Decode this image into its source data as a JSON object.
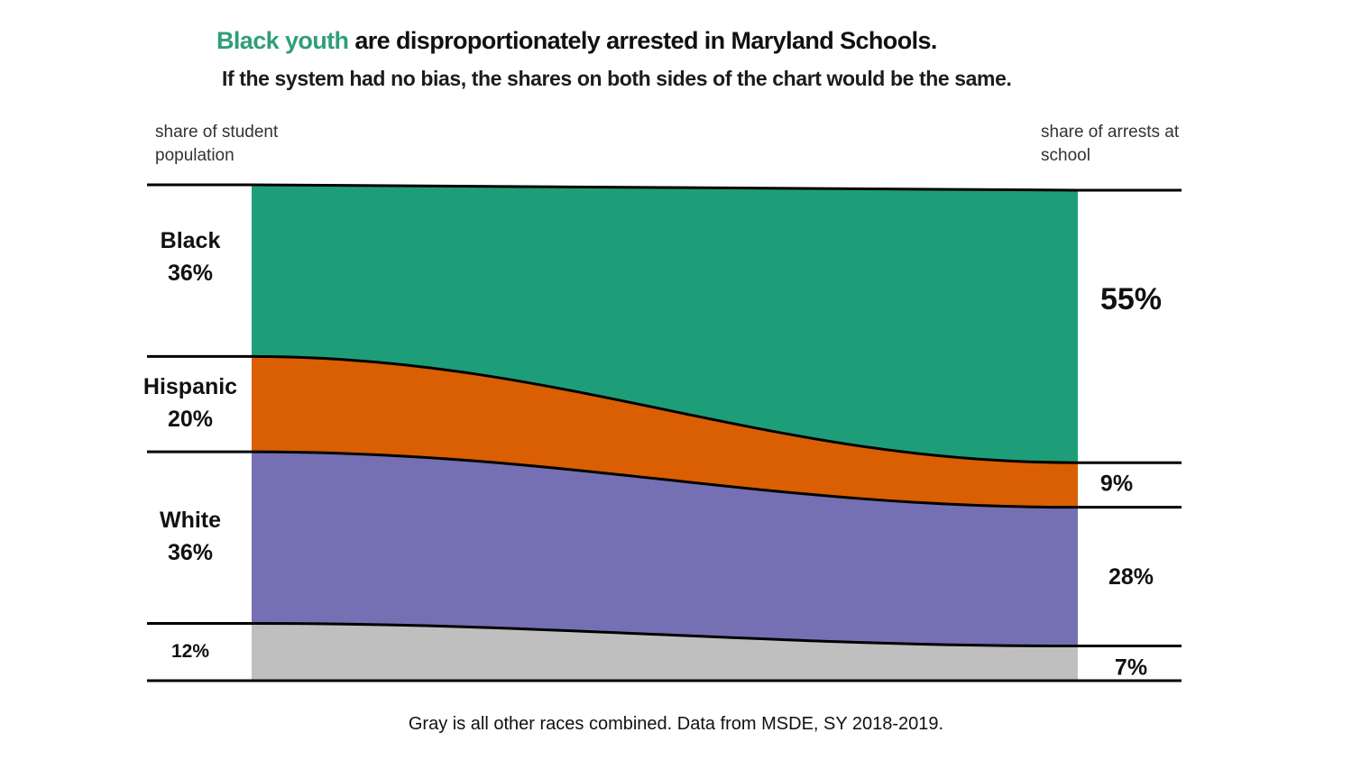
{
  "title": {
    "highlight": "Black youth",
    "rest": " are disproportionately arrested in Maryland Schools."
  },
  "subtitle": "If the system had no bias, the shares on both sides of the chart would be the same.",
  "left_axis_label": [
    "share of student",
    "population"
  ],
  "right_axis_label": [
    "share of arrests at",
    "school"
  ],
  "footnote": "Gray is all other races combined.  Data from MSDE, SY 2018-2019.",
  "chart_data": {
    "type": "area",
    "x": [
      "share of student population",
      "share of arrests at school"
    ],
    "series": [
      {
        "name": "Black",
        "values": [
          36,
          55
        ],
        "color": "#1e9e78",
        "left_label": [
          "Black",
          "36%"
        ],
        "right_label": "55%"
      },
      {
        "name": "Hispanic",
        "values": [
          20,
          9
        ],
        "color": "#d95f02",
        "left_label": [
          "Hispanic",
          "20%"
        ],
        "right_label": "9%"
      },
      {
        "name": "White",
        "values": [
          36,
          28
        ],
        "color": "#7570b3",
        "left_label": [
          "White",
          "36%"
        ],
        "right_label": "28%"
      },
      {
        "name": "",
        "values": [
          12,
          7
        ],
        "color": "#bfbfbf",
        "left_label": [
          "12%"
        ],
        "right_label": "7%"
      }
    ],
    "ylim": [
      0,
      100
    ],
    "note": "Gray is all other races combined."
  }
}
